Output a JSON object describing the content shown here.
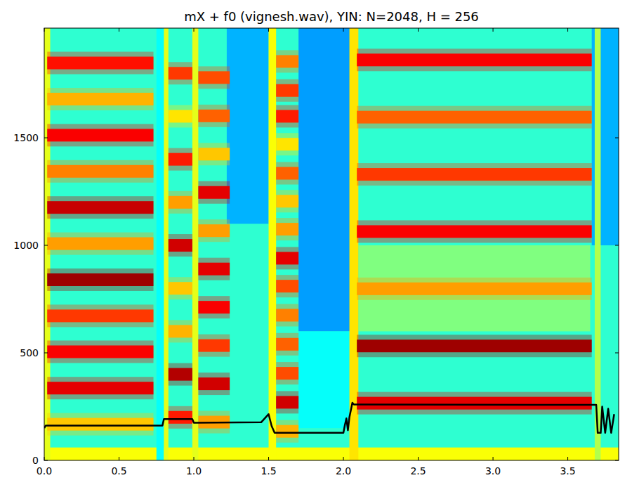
{
  "chart_data": {
    "type": "spectrogram",
    "title": "mX + f0 (vignesh.wav), YIN: N=2048, H = 256",
    "xlim": [
      0,
      3.84
    ],
    "ylim": [
      0,
      2010
    ],
    "xticks": [
      {
        "value": 0,
        "label": "0.0"
      },
      0.5,
      {
        "value": 1,
        "label": "1.0"
      },
      1.5,
      {
        "value": 2,
        "label": "2.0"
      },
      2.5,
      {
        "value": 3,
        "label": "3.0"
      },
      3.5
    ],
    "yticks": [
      0,
      500,
      1000,
      1500
    ],
    "level_range": [
      0,
      1
    ],
    "regions": [
      {
        "t0": 0,
        "t1": 3.84,
        "f0": 0,
        "f1": 2010,
        "level": 0.42
      },
      {
        "t0": 0,
        "t1": 3.84,
        "f0": 0,
        "f1": 60,
        "level": 0.62
      },
      {
        "t0": 1.22,
        "t1": 1.5,
        "f0": 1100,
        "f1": 2010,
        "level": 0.3
      },
      {
        "t0": 1.7,
        "t1": 2.05,
        "f0": 600,
        "f1": 2010,
        "level": 0.28
      },
      {
        "t0": 1.7,
        "t1": 2.05,
        "f0": 150,
        "f1": 600,
        "level": 0.38
      },
      {
        "t0": 2.1,
        "t1": 3.65,
        "f0": 600,
        "f1": 1000,
        "level": 0.5
      },
      {
        "t0": 3.66,
        "t1": 3.84,
        "f0": 1000,
        "f1": 2010,
        "level": 0.3
      },
      {
        "t0": 0.75,
        "t1": 0.8,
        "f0": 0,
        "f1": 2010,
        "level": 0.38
      },
      {
        "t0": 0,
        "t1": 0.04,
        "f0": 0,
        "f1": 2010,
        "level": 0.6
      },
      {
        "t0": 0.8,
        "t1": 0.83,
        "f0": 0,
        "f1": 2010,
        "level": 0.6
      },
      {
        "t0": 0.99,
        "t1": 1.03,
        "f0": 0,
        "f1": 2010,
        "level": 0.6
      },
      {
        "t0": 1.5,
        "t1": 1.55,
        "f0": 0,
        "f1": 2010,
        "level": 0.62
      },
      {
        "t0": 2.04,
        "t1": 2.1,
        "f0": 0,
        "f1": 2010,
        "level": 0.65
      },
      {
        "t0": 3.68,
        "t1": 3.72,
        "f0": 0,
        "f1": 2010,
        "level": 0.55
      }
    ],
    "segments": [
      {
        "t0": 0.02,
        "t1": 0.73,
        "harmonics": [
          {
            "freq": 168,
            "level": 0.68
          },
          {
            "freq": 336,
            "level": 0.9
          },
          {
            "freq": 505,
            "level": 0.88
          },
          {
            "freq": 672,
            "level": 0.82
          },
          {
            "freq": 840,
            "level": 0.97
          },
          {
            "freq": 1008,
            "level": 0.72
          },
          {
            "freq": 1176,
            "level": 0.93
          },
          {
            "freq": 1344,
            "level": 0.75
          },
          {
            "freq": 1512,
            "level": 0.88
          },
          {
            "freq": 1680,
            "level": 0.7
          },
          {
            "freq": 1848,
            "level": 0.86
          }
        ]
      },
      {
        "t0": 0.83,
        "t1": 0.99,
        "harmonics": [
          {
            "freq": 200,
            "level": 0.85
          },
          {
            "freq": 400,
            "level": 0.95
          },
          {
            "freq": 600,
            "level": 0.7
          },
          {
            "freq": 800,
            "level": 0.68
          },
          {
            "freq": 1000,
            "level": 0.92
          },
          {
            "freq": 1200,
            "level": 0.72
          },
          {
            "freq": 1400,
            "level": 0.85
          },
          {
            "freq": 1600,
            "level": 0.65
          },
          {
            "freq": 1800,
            "level": 0.82
          }
        ]
      },
      {
        "t0": 1.03,
        "t1": 1.24,
        "harmonics": [
          {
            "freq": 178,
            "level": 0.72
          },
          {
            "freq": 356,
            "level": 0.92
          },
          {
            "freq": 534,
            "level": 0.82
          },
          {
            "freq": 712,
            "level": 0.88
          },
          {
            "freq": 890,
            "level": 0.9
          },
          {
            "freq": 1068,
            "level": 0.72
          },
          {
            "freq": 1246,
            "level": 0.9
          },
          {
            "freq": 1424,
            "level": 0.68
          },
          {
            "freq": 1602,
            "level": 0.78
          },
          {
            "freq": 1780,
            "level": 0.8
          }
        ]
      },
      {
        "t0": 1.55,
        "t1": 1.7,
        "harmonics": [
          {
            "freq": 135,
            "level": 0.7
          },
          {
            "freq": 270,
            "level": 0.92
          },
          {
            "freq": 405,
            "level": 0.8
          },
          {
            "freq": 540,
            "level": 0.78
          },
          {
            "freq": 675,
            "level": 0.75
          },
          {
            "freq": 810,
            "level": 0.8
          },
          {
            "freq": 940,
            "level": 0.9
          },
          {
            "freq": 1075,
            "level": 0.72
          },
          {
            "freq": 1205,
            "level": 0.68
          },
          {
            "freq": 1335,
            "level": 0.78
          },
          {
            "freq": 1470,
            "level": 0.65
          },
          {
            "freq": 1600,
            "level": 0.85
          },
          {
            "freq": 1720,
            "level": 0.82
          },
          {
            "freq": 1855,
            "level": 0.75
          }
        ]
      },
      {
        "t0": 2.09,
        "t1": 3.66,
        "harmonics": [
          {
            "freq": 266,
            "level": 0.9
          },
          {
            "freq": 532,
            "level": 0.97
          },
          {
            "freq": 798,
            "level": 0.72
          },
          {
            "freq": 1064,
            "level": 0.88
          },
          {
            "freq": 1330,
            "level": 0.82
          },
          {
            "freq": 1596,
            "level": 0.78
          },
          {
            "freq": 1862,
            "level": 0.88
          }
        ]
      }
    ],
    "x": [
      0,
      0.01,
      0.79,
      0.8,
      0.99,
      1.0,
      1.45,
      1.48,
      1.5,
      1.52,
      1.54,
      2.0,
      2.01,
      2.02,
      2.03,
      2.04,
      2.06,
      2.07,
      3.69,
      3.7,
      3.72,
      3.73,
      3.75,
      3.77,
      3.79,
      3.81
    ],
    "series": [
      {
        "color": "#000000",
        "line_style": "solid",
        "values": [
          150,
          162,
          162,
          192,
          192,
          175,
          177,
          200,
          215,
          160,
          128,
          128,
          165,
          195,
          140,
          200,
          268,
          260,
          258,
          128,
          128,
          250,
          128,
          240,
          128,
          215
        ]
      }
    ]
  }
}
